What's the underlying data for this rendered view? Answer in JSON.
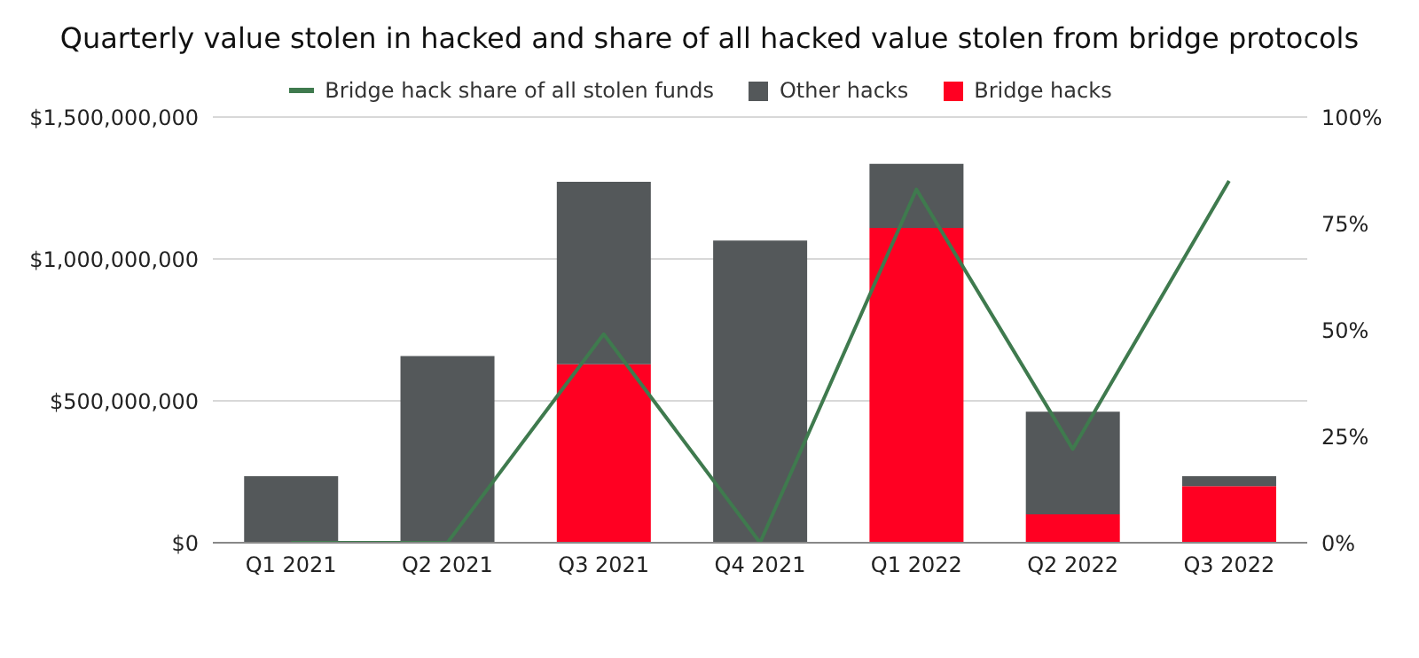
{
  "chart_data": {
    "type": "bar",
    "title": "Quarterly value stolen in hacked and share of all hacked value stolen from bridge protocols",
    "categories": [
      "Q1 2021",
      "Q2 2021",
      "Q3 2021",
      "Q4 2021",
      "Q1 2022",
      "Q2 2022",
      "Q3 2022"
    ],
    "stacked": true,
    "series": [
      {
        "name": "Bridge hacks",
        "color": "#ff0022",
        "values": [
          0,
          0,
          629000000,
          0,
          1109000000,
          100000000,
          199000000
        ]
      },
      {
        "name": "Other hacks",
        "color": "#54585a",
        "values": [
          234000000,
          658000000,
          643000000,
          1065000000,
          226000000,
          362000000,
          35000000
        ]
      },
      {
        "name": "Bridge hack share of all stolen funds",
        "type": "line",
        "axis": "y2",
        "color": "#3f7a4e",
        "values": [
          0,
          0,
          49,
          0,
          83,
          22,
          85
        ]
      }
    ],
    "ylim": [
      0,
      1500000000
    ],
    "yticks": [
      {
        "value": 0,
        "label": "$0"
      },
      {
        "value": 500000000,
        "label": "$500,000,000"
      },
      {
        "value": 1000000000,
        "label": "$1,000,000,000"
      },
      {
        "value": 1500000000,
        "label": "$1,500,000,000"
      }
    ],
    "y2lim": [
      0,
      100
    ],
    "y2ticks": [
      {
        "value": 0,
        "label": "0%"
      },
      {
        "value": 25,
        "label": "25%"
      },
      {
        "value": 50,
        "label": "50%"
      },
      {
        "value": 75,
        "label": "75%"
      },
      {
        "value": 100,
        "label": "100%"
      }
    ],
    "grid": "y",
    "legend": "top",
    "marker": "none"
  }
}
